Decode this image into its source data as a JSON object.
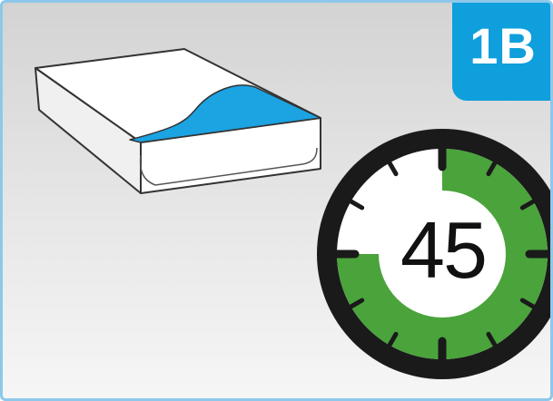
{
  "badge": {
    "label": "1B",
    "color": "#0f9fdc"
  },
  "illustration": {
    "icon": "pad-box-icon",
    "accent_color": "#1ba3e2"
  },
  "timer": {
    "value": "45",
    "icon": "stopwatch-icon",
    "filled_fraction": 0.75,
    "ring_color": "#4aa33b",
    "bezel_color": "#1a1a1a"
  },
  "colors": {
    "frame_border": "#8dc8ea"
  }
}
